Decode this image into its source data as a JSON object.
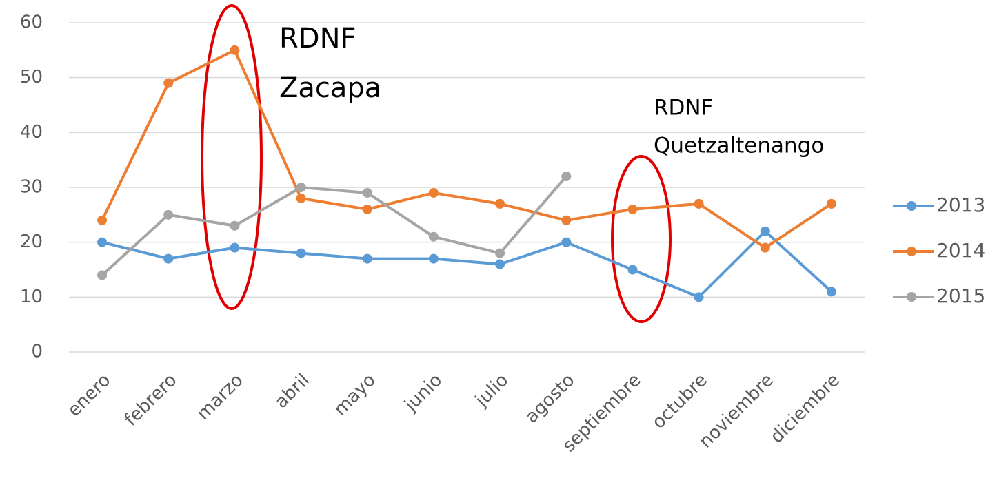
{
  "chart_data": {
    "type": "line",
    "categories": [
      "enero",
      "febrero",
      "marzo",
      "abril",
      "mayo",
      "junio",
      "julio",
      "agosto",
      "septiembre",
      "octubre",
      "noviembre",
      "diciembre"
    ],
    "series": [
      {
        "name": "2013",
        "color": "#5b9bd5",
        "values": [
          20,
          17,
          19,
          18,
          17,
          17,
          16,
          20,
          15,
          10,
          22,
          11
        ]
      },
      {
        "name": "2014",
        "color": "#ed7d31",
        "values": [
          24,
          49,
          55,
          28,
          26,
          29,
          27,
          24,
          26,
          27,
          19,
          27
        ]
      },
      {
        "name": "2015",
        "color": "#a5a5a5",
        "values": [
          14,
          25,
          23,
          30,
          29,
          21,
          18,
          32,
          null,
          null,
          null,
          null
        ]
      }
    ],
    "ylim": [
      0,
      60
    ],
    "yticks": [
      0,
      10,
      20,
      30,
      40,
      50,
      60
    ],
    "grid": true,
    "legend": "right",
    "annotations": [
      {
        "lines": [
          "RDNF",
          "Zacapa"
        ]
      },
      {
        "lines": [
          "RDNF",
          "Quetzaltenango"
        ]
      }
    ]
  }
}
